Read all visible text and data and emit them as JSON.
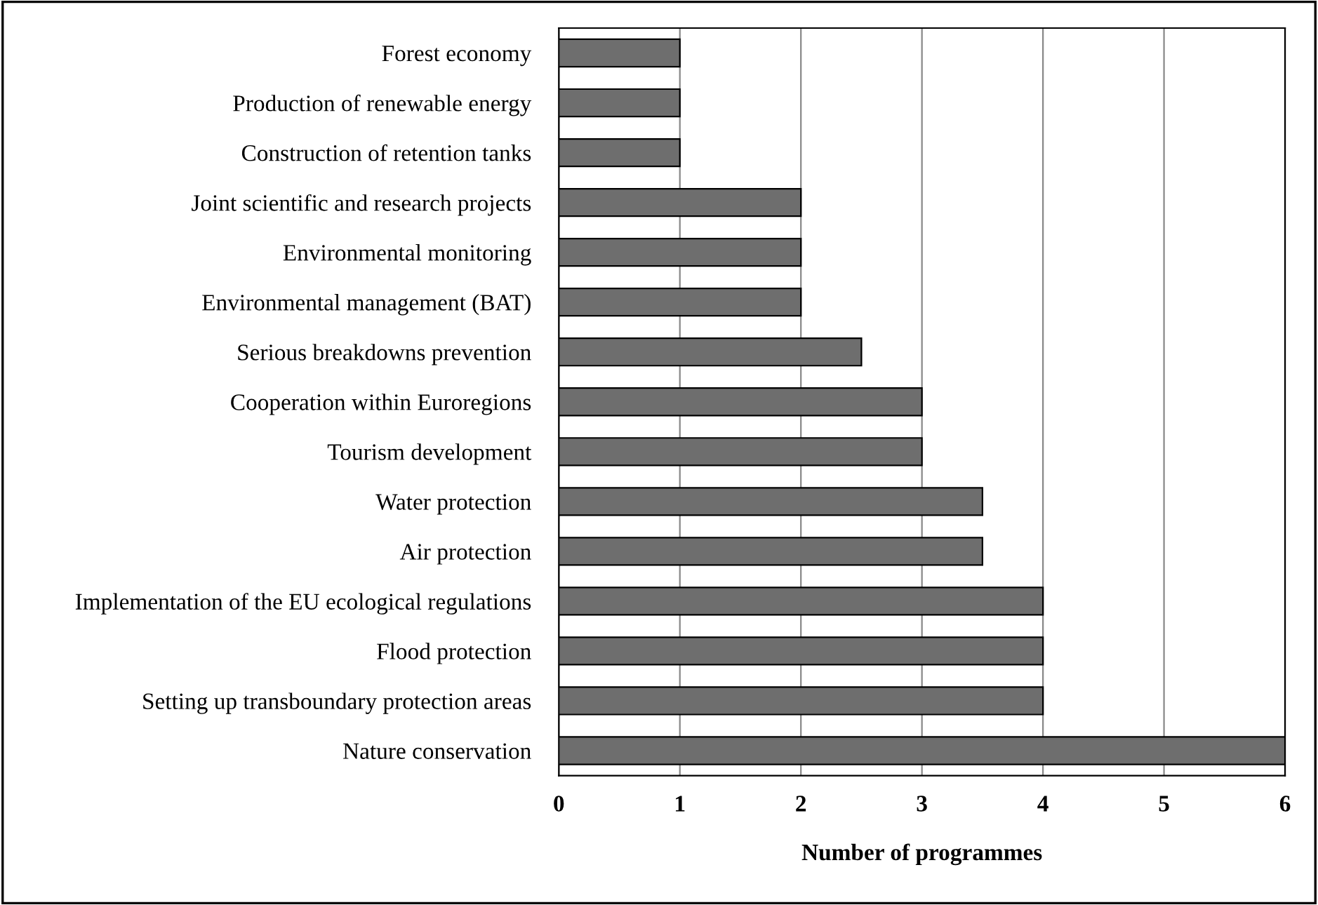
{
  "chart_data": {
    "type": "bar",
    "orientation": "horizontal",
    "xlabel": "Number of programmes",
    "categories": [
      "Forest economy",
      "Production of renewable energy",
      "Construction of retention tanks",
      "Joint scientific and research projects",
      "Environmental monitoring",
      "Environmental management (BAT)",
      "Serious breakdowns prevention",
      "Cooperation within Euroregions",
      "Tourism development",
      "Water protection",
      "Air protection",
      "Implementation of the EU ecological regulations",
      "Flood protection",
      "Setting up transboundary protection areas",
      "Nature conservation"
    ],
    "values": [
      1,
      1,
      1,
      2,
      2,
      2,
      2.5,
      3,
      3,
      3.5,
      3.5,
      4,
      4,
      4,
      6
    ],
    "color": "#6e6e6e",
    "xlim": [
      0,
      6
    ],
    "xticks": [
      0,
      1,
      2,
      3,
      4,
      5,
      6
    ],
    "grid": "x"
  }
}
